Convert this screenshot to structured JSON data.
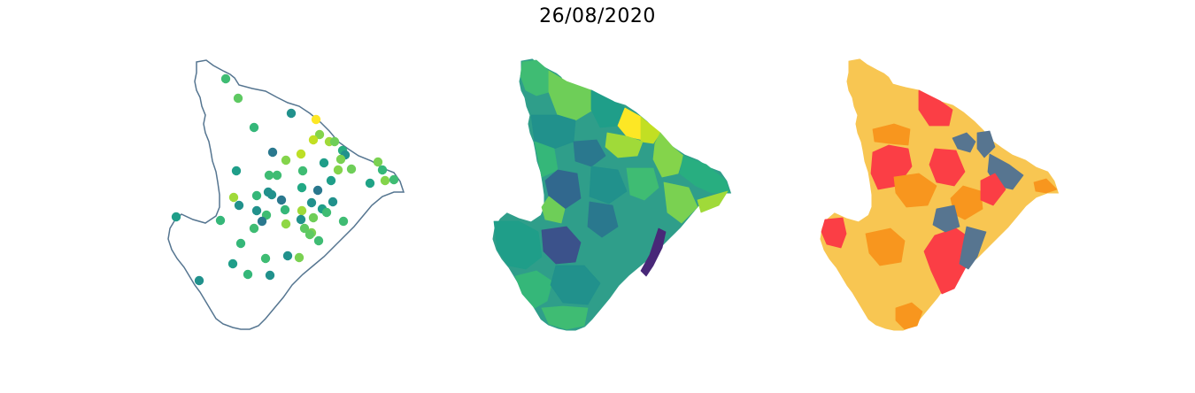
{
  "title": "26/08/2020",
  "colors": {
    "outline": "#557590",
    "choropleth_fill": "#2f9e8a",
    "risk_fill": "#f8c652"
  },
  "points": [
    {
      "c": "#3fbc73"
    },
    {
      "c": "#5ec962"
    },
    {
      "c": "#21918c"
    },
    {
      "c": "#fde725"
    },
    {
      "c": "#35b779"
    },
    {
      "c": "#84d44b"
    },
    {
      "c": "#c2df23"
    },
    {
      "c": "#2a788e"
    },
    {
      "c": "#a0da39"
    },
    {
      "c": "#6ece58"
    },
    {
      "c": "#28ae80"
    },
    {
      "c": "#21918c"
    },
    {
      "c": "#7ad151"
    },
    {
      "c": "#84d44b"
    },
    {
      "c": "#bddf26"
    },
    {
      "c": "#1f9e89"
    },
    {
      "c": "#84d44b"
    },
    {
      "c": "#6ece58"
    },
    {
      "c": "#3fbc73"
    },
    {
      "c": "#1f9e89"
    },
    {
      "c": "#3fbc73"
    },
    {
      "c": "#21918c"
    },
    {
      "c": "#3fbc73"
    },
    {
      "c": "#7ad151"
    },
    {
      "c": "#35b779"
    },
    {
      "c": "#84d44b"
    },
    {
      "c": "#20a386"
    },
    {
      "c": "#3fbc73"
    },
    {
      "c": "#22a884"
    },
    {
      "c": "#2a788e"
    },
    {
      "c": "#1f9e89"
    },
    {
      "c": "#a0da39"
    },
    {
      "c": "#21918c"
    },
    {
      "c": "#35b779"
    },
    {
      "c": "#21918c"
    },
    {
      "c": "#2a788e"
    },
    {
      "c": "#a0da39"
    },
    {
      "c": "#21918c"
    },
    {
      "c": "#6ece58"
    },
    {
      "c": "#1f9e89"
    },
    {
      "c": "#21918c"
    },
    {
      "c": "#3fbc73"
    },
    {
      "c": "#21918c"
    },
    {
      "c": "#3fbc73"
    },
    {
      "c": "#2a788e"
    },
    {
      "c": "#35b779"
    },
    {
      "c": "#21918c"
    },
    {
      "c": "#5ec962"
    },
    {
      "c": "#3fbc73"
    },
    {
      "c": "#8fd744"
    },
    {
      "c": "#3fbc73"
    },
    {
      "c": "#7ad151"
    },
    {
      "c": "#35b779"
    },
    {
      "c": "#1f9e89"
    },
    {
      "c": "#3fbc73"
    },
    {
      "c": "#5ec962"
    },
    {
      "c": "#35b779"
    },
    {
      "c": "#3fbc73"
    },
    {
      "c": "#21918c"
    },
    {
      "c": "#7ad151"
    },
    {
      "c": "#1f9e89"
    },
    {
      "c": "#35b779"
    },
    {
      "c": "#21918c"
    },
    {
      "c": "#21918c"
    }
  ],
  "choropleth_regions": [
    {
      "c": "#3fbc73"
    },
    {
      "c": "#6ece58"
    },
    {
      "c": "#1f9e89"
    },
    {
      "c": "#fde725"
    },
    {
      "c": "#c2df23"
    },
    {
      "c": "#a0da39"
    },
    {
      "c": "#21918c"
    },
    {
      "c": "#2a788e"
    },
    {
      "c": "#35b779"
    },
    {
      "c": "#84d44b"
    },
    {
      "c": "#28ae80"
    },
    {
      "c": "#31688e"
    },
    {
      "c": "#21918c"
    },
    {
      "c": "#3fbc73"
    },
    {
      "c": "#2a788e"
    },
    {
      "c": "#6ece58"
    },
    {
      "c": "#1f9e89"
    },
    {
      "c": "#3b528b"
    },
    {
      "c": "#482878"
    },
    {
      "c": "#35b779"
    },
    {
      "c": "#7ad151"
    },
    {
      "c": "#a0da39"
    },
    {
      "c": "#21918c"
    },
    {
      "c": "#3fbc73"
    }
  ],
  "risk_regions": [
    {
      "c": "#fb3e45"
    },
    {
      "c": "#fb3e45"
    },
    {
      "c": "#fb3e45"
    },
    {
      "c": "#f8961e"
    },
    {
      "c": "#f8961e"
    },
    {
      "c": "#577590"
    },
    {
      "c": "#577590"
    },
    {
      "c": "#fb3e45"
    },
    {
      "c": "#f8961e"
    },
    {
      "c": "#577590"
    },
    {
      "c": "#fb3e45"
    },
    {
      "c": "#f8961e"
    },
    {
      "c": "#577590"
    },
    {
      "c": "#f8961e"
    },
    {
      "c": "#fb3e45"
    },
    {
      "c": "#577590"
    },
    {
      "c": "#f8961e"
    }
  ]
}
